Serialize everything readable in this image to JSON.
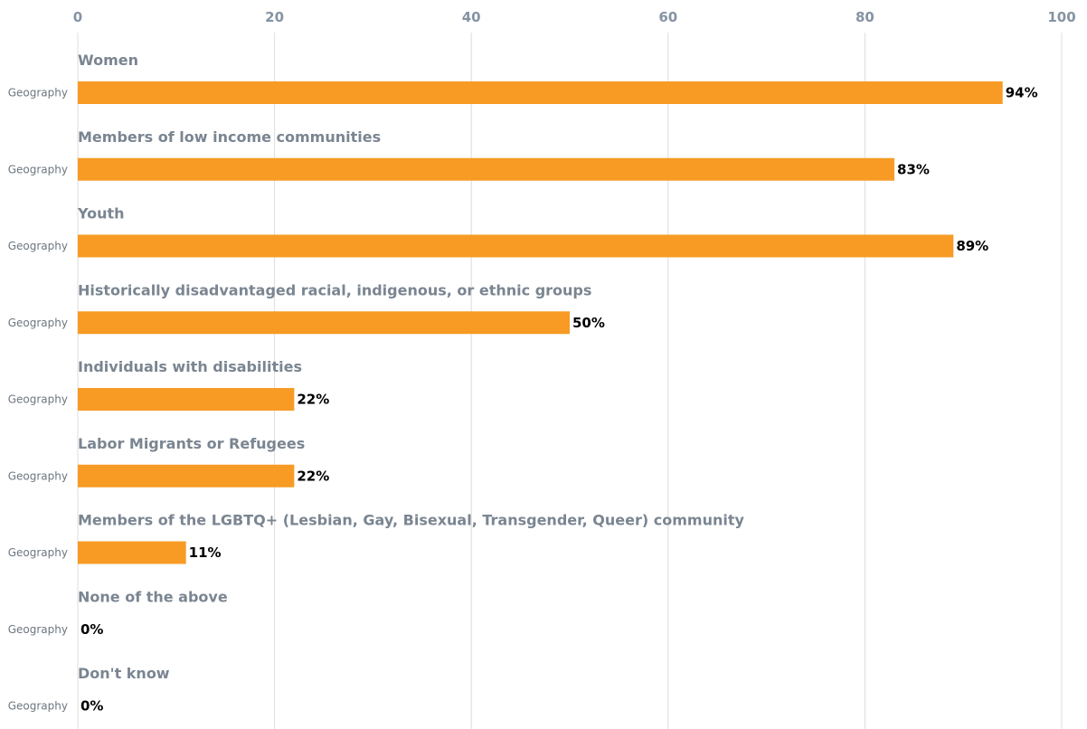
{
  "chart_data": {
    "type": "bar",
    "orientation": "horizontal",
    "title": "",
    "xlabel": "",
    "ylabel": "",
    "xlim": [
      0,
      100
    ],
    "x_ticks": [
      0,
      20,
      40,
      60,
      80,
      100
    ],
    "grid": true,
    "legend": "none",
    "bar_color": "#f79b25",
    "value_suffix": "%",
    "categories": [
      "Women",
      "Members of low income communities",
      "Youth",
      "Historically disadvantaged racial, indigenous, or ethnic groups",
      "Individuals with disabilities",
      "Labor Migrants or Refugees",
      "Members of the LGBTQ+ (Lesbian, Gay, Bisexual, Transgender, Queer) community",
      "None of the above",
      "Don't know"
    ],
    "series": [
      {
        "name": "Geography",
        "values": [
          94,
          83,
          89,
          50,
          22,
          22,
          11,
          0,
          0
        ]
      }
    ]
  }
}
